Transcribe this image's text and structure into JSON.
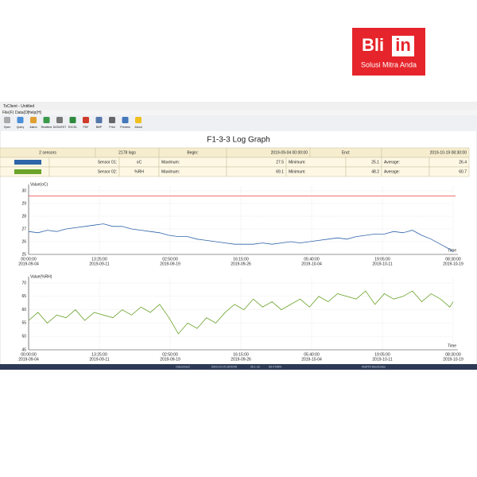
{
  "logo": {
    "brand_a": "Bli",
    "brand_b": "in",
    "tagline": "Solusi Mitra Anda"
  },
  "window": {
    "title": "TsClient - Untitled",
    "menu": [
      "File(F)",
      "Data(D)",
      "Help(H)"
    ],
    "toolbar": [
      "Open",
      "Query",
      "Alarm",
      "Realtime",
      "DATA/EST",
      "EXCEL",
      "PDF",
      "BMP",
      "Print",
      "Preview",
      "About"
    ]
  },
  "header": {
    "title": "F1-3-3 Log Graph"
  },
  "table": {
    "rows": [
      [
        "2 sensors",
        "2178 logs",
        "Begin:",
        "2019-09-04 00:00:00",
        "End:",
        "2019-10-19 08:30:00"
      ],
      [
        "Sensor 01:",
        "oC",
        "Maximum:",
        27.5,
        "Minimum:",
        25.1,
        "Average:",
        26.4
      ],
      [
        "Sensor 02:",
        "%RH",
        "Maximum:",
        69.1,
        "Minimum:",
        48.2,
        "Average:",
        60.7
      ]
    ],
    "swatches": [
      "#2e64a8",
      "#6aa32a"
    ]
  },
  "chart_data": [
    {
      "type": "line",
      "y_label": "Value(oC)",
      "x_label": "Time",
      "xlim": [
        0,
        45.354
      ],
      "ylim": [
        25,
        30
      ],
      "yticks": [
        25,
        26,
        27,
        28,
        29,
        30
      ],
      "xticks": [
        {
          "value": 0,
          "label": "00:00:00",
          "date": "2019-09-04"
        },
        {
          "value": 7.559,
          "label": "13:25:00",
          "date": "2019-09-11"
        },
        {
          "value": 15.118,
          "label": "02:50:00",
          "date": "2019-09-19"
        },
        {
          "value": 22.677,
          "label": "16:15:00",
          "date": "2019-09-26"
        },
        {
          "value": 30.236,
          "label": "05:40:00",
          "date": "2019-10-04"
        },
        {
          "value": 37.795,
          "label": "19:05:00",
          "date": "2019-10-11"
        },
        {
          "value": 45.354,
          "label": "08:30:00",
          "date": "2019-10-19"
        }
      ],
      "alarm_line": {
        "value": 29.6,
        "color": "#e84040"
      },
      "x": [
        0,
        1,
        2,
        3,
        4,
        5,
        6,
        7,
        8,
        9,
        10,
        11,
        12,
        13,
        14,
        15,
        16,
        17,
        18,
        19,
        20,
        21,
        22,
        23,
        24,
        25,
        26,
        27,
        28,
        29,
        30,
        31,
        32,
        33,
        34,
        35,
        36,
        37,
        38,
        39,
        40,
        41,
        42,
        43,
        44,
        45,
        45.354
      ],
      "series": [
        {
          "color": "#2e64a8",
          "values": [
            26.8,
            26.7,
            26.9,
            26.8,
            27.0,
            27.1,
            27.2,
            27.3,
            27.4,
            27.2,
            27.2,
            27.0,
            26.9,
            26.8,
            26.7,
            26.5,
            26.4,
            26.4,
            26.2,
            26.1,
            26.0,
            25.9,
            25.8,
            25.8,
            25.8,
            25.9,
            25.8,
            25.9,
            26.0,
            25.9,
            26.0,
            26.1,
            26.2,
            26.3,
            26.2,
            26.4,
            26.5,
            26.6,
            26.6,
            26.8,
            26.7,
            26.9,
            26.5,
            26.2,
            25.8,
            25.4,
            25.2
          ]
        }
      ]
    },
    {
      "type": "line",
      "y_label": "Value(%RH)",
      "x_label": "Time",
      "xlim": [
        0,
        45.354
      ],
      "ylim": [
        45,
        70
      ],
      "yticks": [
        45,
        50,
        55,
        60,
        65,
        70
      ],
      "xticks": [
        {
          "value": 0,
          "label": "00:00:00",
          "date": "2019-09-04"
        },
        {
          "value": 7.559,
          "label": "13:25:00",
          "date": "2019-09-11"
        },
        {
          "value": 15.118,
          "label": "02:50:00",
          "date": "2019-09-19"
        },
        {
          "value": 22.677,
          "label": "16:15:00",
          "date": "2019-09-26"
        },
        {
          "value": 30.236,
          "label": "05:40:00",
          "date": "2019-10-04"
        },
        {
          "value": 37.795,
          "label": "19:05:00",
          "date": "2019-10-11"
        },
        {
          "value": 45.354,
          "label": "08:30:00",
          "date": "2019-10-19"
        }
      ],
      "x": [
        0,
        1,
        2,
        3,
        4,
        5,
        6,
        7,
        8,
        9,
        10,
        11,
        12,
        13,
        14,
        15,
        16,
        17,
        18,
        19,
        20,
        21,
        22,
        23,
        24,
        25,
        26,
        27,
        28,
        29,
        30,
        31,
        32,
        33,
        34,
        35,
        36,
        37,
        38,
        39,
        40,
        41,
        42,
        43,
        44,
        45,
        45.354
      ],
      "series": [
        {
          "color": "#6aa32a",
          "values": [
            56,
            59,
            55,
            58,
            57,
            60,
            56,
            59,
            58,
            57,
            60,
            58,
            61,
            59,
            62,
            57,
            51,
            55,
            53,
            57,
            55,
            59,
            62,
            60,
            64,
            61,
            63,
            60,
            62,
            64,
            61,
            65,
            63,
            66,
            65,
            64,
            67,
            62,
            66,
            64,
            65,
            67,
            63,
            66,
            64,
            61,
            63
          ]
        }
      ]
    }
  ],
  "status": [
    "Disconnect",
    "2019-10-15 18:00:00",
    "26.1 oC",
    "63.4 %RH",
    "HUATO Electronics"
  ]
}
